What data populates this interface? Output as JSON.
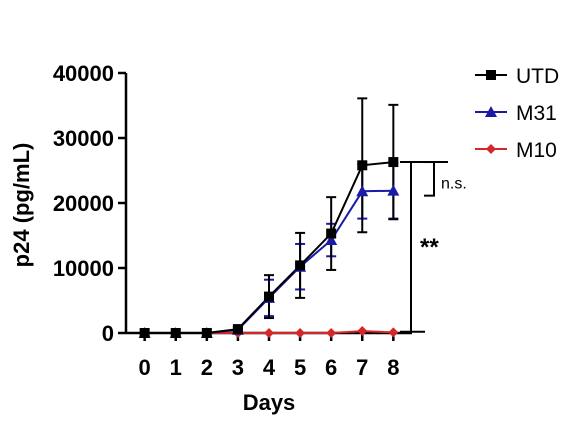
{
  "chart_data": {
    "type": "line",
    "xlabel": "Days",
    "ylabel": "p24 (pg/mL)",
    "x": [
      0,
      1,
      2,
      3,
      4,
      5,
      6,
      7,
      8
    ],
    "xlim": [
      -0.6,
      8.6
    ],
    "ylim": [
      0,
      40000
    ],
    "yticks": [
      0,
      10000,
      20000,
      30000,
      40000
    ],
    "ytick_labels": [
      "0",
      "10000",
      "20000",
      "30000",
      "40000"
    ],
    "xtick_labels": [
      "0",
      "1",
      "2",
      "3",
      "4",
      "5",
      "6",
      "7",
      "8"
    ],
    "grid": false,
    "legend_position": "top-right",
    "series": [
      {
        "name": "UTD",
        "color": "#000000",
        "marker": "square",
        "values": [
          0,
          0,
          0,
          600,
          5600,
          10400,
          15300,
          25800,
          26300
        ],
        "errors": [
          0,
          0,
          0,
          400,
          3300,
          5000,
          5600,
          10300,
          8800
        ]
      },
      {
        "name": "M31",
        "color": "#1a1aa6",
        "marker": "triangle",
        "values": [
          0,
          0,
          0,
          500,
          5400,
          10200,
          14300,
          21800,
          21900
        ],
        "errors": [
          0,
          0,
          0,
          300,
          2800,
          3500,
          2500,
          4200,
          4300
        ]
      },
      {
        "name": "M10",
        "color": "#d62728",
        "marker": "diamond",
        "values": [
          0,
          0,
          0,
          0,
          0,
          0,
          0,
          300,
          100
        ],
        "errors": [
          0,
          0,
          0,
          0,
          0,
          0,
          0,
          0,
          0
        ]
      }
    ],
    "annotations": [
      {
        "text": "n.s.",
        "y_top": 26300,
        "y_bottom": 21900
      },
      {
        "text": "**",
        "y_top": 26300,
        "y_bottom": 500
      }
    ]
  }
}
